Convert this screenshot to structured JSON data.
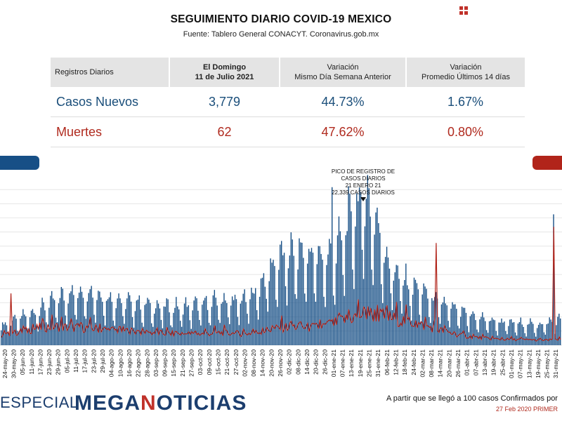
{
  "header": {
    "title": "SEGUIMIENTO DIARIO COVID-19 MEXICO",
    "source": "Fuente: Tablero General CONACYT. Coronavirus.gob.mx"
  },
  "summary_table": {
    "col0": "Registros Diarios",
    "col1_line1": "El Domingo",
    "col1_line2": "11 de Julio 2021",
    "col2_line1": "Variación",
    "col2_line2": "Mismo Día Semana Anterior",
    "col3_line1": "Variación",
    "col3_line2": "Promedio Últimos 14 días",
    "rows": [
      {
        "label": "Casos Nuevos",
        "value": "3,779",
        "var_week": "44.73%",
        "var_14d": "1.67%"
      },
      {
        "label": "Muertes",
        "value": "62",
        "var_week": "47.62%",
        "var_14d": "0.80%"
      }
    ]
  },
  "colors": {
    "cases": "#174f86",
    "deaths": "#b1241a",
    "footer_brand": "#1c3e6e"
  },
  "chart_data": {
    "type": "bar",
    "series": [
      {
        "type": "bar",
        "color": "#174f86"
      },
      {
        "type": "line",
        "color": "#b1241a"
      }
    ],
    "x_tick_labels": [
      "24-may-20",
      "30-may-20",
      "05-jun-20",
      "11-jun-20",
      "17-jun-20",
      "23-jun-20",
      "29-jun-20",
      "05-jul-20",
      "11-jul-20",
      "17-jul-20",
      "23-jul-20",
      "29-jul-20",
      "04-ago-20",
      "10-ago-20",
      "16-ago-20",
      "22-ago-20",
      "28-ago-20",
      "03-sep-20",
      "09-sep-20",
      "15-sep-20",
      "21-sep-20",
      "27-sep-20",
      "03-oct-20",
      "09-oct-20",
      "15-oct-20",
      "21-oct-20",
      "27-oct-20",
      "02-nov-20",
      "08-nov-20",
      "14-nov-20",
      "20-nov-20",
      "26-nov-20",
      "02-dic-20",
      "08-dic-20",
      "14-dic-20",
      "20-dic-20",
      "26-dic-20",
      "01-ene-21",
      "07-ene-21",
      "13-ene-21",
      "19-ene-21",
      "25-ene-21",
      "31-ene-21",
      "06-feb-21",
      "12-feb-21",
      "18-feb-21",
      "24-feb-21",
      "02-mar-21",
      "08-mar-21",
      "14-mar-21",
      "20-mar-21",
      "26-mar-21",
      "01-abr-21",
      "07-abr-21",
      "13-abr-21",
      "19-abr-21",
      "25-abr-21",
      "01-may-21",
      "07-may-21",
      "13-may-21",
      "19-may-21",
      "25-may-21",
      "31-may-21"
    ],
    "bar_profile": [
      [
        0,
        2400
      ],
      [
        7,
        3000
      ],
      [
        14,
        3500
      ],
      [
        21,
        3900
      ],
      [
        28,
        4500
      ],
      [
        35,
        5200
      ],
      [
        42,
        6000
      ],
      [
        49,
        6500
      ],
      [
        56,
        6700
      ],
      [
        63,
        7000
      ],
      [
        70,
        6600
      ],
      [
        77,
        6000
      ],
      [
        84,
        5800
      ],
      [
        91,
        5600
      ],
      [
        98,
        5400
      ],
      [
        105,
        5200
      ],
      [
        112,
        5000
      ],
      [
        119,
        4900
      ],
      [
        126,
        4800
      ],
      [
        133,
        4900
      ],
      [
        140,
        5000
      ],
      [
        147,
        5200
      ],
      [
        154,
        5400
      ],
      [
        161,
        5800
      ],
      [
        168,
        5600
      ],
      [
        175,
        5700
      ],
      [
        182,
        6200
      ],
      [
        189,
        7500
      ],
      [
        196,
        9500
      ],
      [
        203,
        11000
      ],
      [
        210,
        11500
      ],
      [
        217,
        11800
      ],
      [
        224,
        11600
      ],
      [
        231,
        11300
      ],
      [
        238,
        11000
      ],
      [
        245,
        12000
      ],
      [
        252,
        15000
      ],
      [
        259,
        17500
      ],
      [
        266,
        19000
      ],
      [
        273,
        16500
      ],
      [
        280,
        12000
      ],
      [
        287,
        9500
      ],
      [
        294,
        8300
      ],
      [
        301,
        7500
      ],
      [
        308,
        6800
      ],
      [
        315,
        6000
      ],
      [
        322,
        5400
      ],
      [
        329,
        4800
      ],
      [
        336,
        4200
      ],
      [
        343,
        3800
      ],
      [
        350,
        3500
      ],
      [
        357,
        3200
      ],
      [
        364,
        3000
      ],
      [
        371,
        2800
      ],
      [
        378,
        2800
      ],
      [
        385,
        2700
      ],
      [
        392,
        2600
      ],
      [
        399,
        2800
      ],
      [
        406,
        3200
      ]
    ],
    "weekday_factors": [
      1.0,
      1.18,
      1.28,
      1.2,
      1.06,
      0.66,
      0.5
    ],
    "death_profile": [
      [
        0,
        400
      ],
      [
        7,
        500
      ],
      [
        14,
        600
      ],
      [
        21,
        700
      ],
      [
        28,
        800
      ],
      [
        35,
        850
      ],
      [
        42,
        850
      ],
      [
        49,
        800
      ],
      [
        56,
        800
      ],
      [
        63,
        780
      ],
      [
        70,
        750
      ],
      [
        77,
        700
      ],
      [
        84,
        680
      ],
      [
        91,
        650
      ],
      [
        98,
        620
      ],
      [
        105,
        580
      ],
      [
        112,
        550
      ],
      [
        119,
        520
      ],
      [
        126,
        500
      ],
      [
        133,
        490
      ],
      [
        140,
        500
      ],
      [
        147,
        500
      ],
      [
        154,
        520
      ],
      [
        161,
        550
      ],
      [
        168,
        520
      ],
      [
        175,
        500
      ],
      [
        182,
        520
      ],
      [
        189,
        600
      ],
      [
        196,
        700
      ],
      [
        203,
        780
      ],
      [
        210,
        850
      ],
      [
        217,
        850
      ],
      [
        224,
        800
      ],
      [
        231,
        820
      ],
      [
        238,
        900
      ],
      [
        245,
        1050
      ],
      [
        252,
        1200
      ],
      [
        259,
        1350
      ],
      [
        266,
        1500
      ],
      [
        273,
        1450
      ],
      [
        280,
        1350
      ],
      [
        287,
        1250
      ],
      [
        294,
        1150
      ],
      [
        301,
        1050
      ],
      [
        308,
        900
      ],
      [
        315,
        800
      ],
      [
        322,
        650
      ],
      [
        329,
        520
      ],
      [
        336,
        420
      ],
      [
        343,
        350
      ],
      [
        350,
        300
      ],
      [
        357,
        260
      ],
      [
        364,
        230
      ],
      [
        371,
        220
      ],
      [
        378,
        210
      ],
      [
        385,
        200
      ],
      [
        392,
        180
      ],
      [
        399,
        180
      ],
      [
        406,
        200
      ]
    ],
    "death_spikes": [
      [
        7,
        2500
      ],
      [
        318,
        5000
      ],
      [
        404,
        5800
      ]
    ],
    "case_spike": [
      404,
      18500
    ],
    "y_range": [
      0,
      24000
    ],
    "annotation": {
      "line1": "PICO DE REGISTRO DE",
      "line2": "CASOS DIARIOS",
      "line3": "21 ENERO 21",
      "line4": "22,339 CASOS DIARIOS",
      "peak_value": 22339
    }
  },
  "footer": {
    "left": "ESPECIAL",
    "brand_a": "MEGA",
    "brand_n": "N",
    "brand_b": "OTICIAS",
    "note": "A partir que se llegó a 100 casos Confirmados por",
    "date": "27 Feb 2020 PRIMER"
  }
}
